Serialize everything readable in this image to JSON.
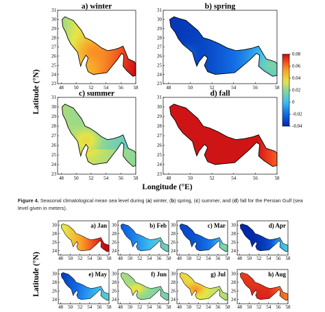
{
  "figure4": {
    "ylabel": "Latitude (°N)",
    "xlabel": "Longitude (°E)",
    "colorbar": {
      "ticks": [
        0.08,
        0.06,
        0.04,
        0.02,
        0,
        -0.02,
        -0.04
      ]
    }
  },
  "figure5": {
    "ylabel": "Latitude (°N)"
  },
  "caption": {
    "label": "Figure 4.",
    "segments": [
      {
        "text": " Seasonal climatological mean sea level during (",
        "bold": false
      },
      {
        "text": "a",
        "bold": true
      },
      {
        "text": ") winter, (",
        "bold": false
      },
      {
        "text": "b",
        "bold": true
      },
      {
        "text": ") spring, (",
        "bold": false
      },
      {
        "text": "c",
        "bold": true
      },
      {
        "text": ") summer, and (",
        "bold": false
      },
      {
        "text": "d",
        "bold": true
      },
      {
        "text": ") fall for the Persian Gulf (sea level given in meters).",
        "bold": false
      }
    ]
  },
  "chart_data": [
    {
      "type": "heatmap",
      "figure": "Figure 4",
      "panels": [
        {
          "title": "a) winter",
          "regional_mean_m": 0.05
        },
        {
          "title": "b) spring",
          "regional_mean_m": -0.03
        },
        {
          "title": "c) summer",
          "regional_mean_m": 0.03
        },
        {
          "title": "d) fall",
          "regional_mean_m": 0.075
        }
      ],
      "x_ticks": [
        48,
        50,
        52,
        54,
        56,
        58
      ],
      "y_ticks": [
        23,
        24,
        25,
        26,
        27,
        28,
        29,
        30,
        31
      ],
      "xlim": [
        47.5,
        58
      ],
      "ylim": [
        23,
        31
      ],
      "xlabel": "Longitude (°E)",
      "ylabel": "Latitude (°N)",
      "colorbar_range": [
        -0.04,
        0.08
      ],
      "colorbar_ticks": [
        0.08,
        0.06,
        0.04,
        0.02,
        0,
        -0.02,
        -0.04
      ]
    },
    {
      "type": "heatmap",
      "figure": "Figure 5 (partial)",
      "panels": [
        {
          "title": "a) Jan",
          "regional_mean_m": 0.045
        },
        {
          "title": "b) Feb",
          "regional_mean_m": -0.01
        },
        {
          "title": "c) Mar",
          "regional_mean_m": -0.02
        },
        {
          "title": "d) Apr",
          "regional_mean_m": -0.035
        },
        {
          "title": "e) May",
          "regional_mean_m": -0.02
        },
        {
          "title": "f) Jun",
          "regional_mean_m": 0.035
        },
        {
          "title": "g) Jul",
          "regional_mean_m": 0.04
        },
        {
          "title": "h) Aug",
          "regional_mean_m": 0.07
        }
      ],
      "x_ticks": [
        48,
        50,
        52,
        54,
        56,
        58
      ],
      "y_ticks": [
        24,
        26,
        28,
        30
      ],
      "xlim": [
        47.5,
        58
      ],
      "ylim": [
        23,
        31
      ],
      "ylabel": "Latitude (°N)",
      "colorbar_range": [
        -0.04,
        0.08
      ]
    }
  ]
}
